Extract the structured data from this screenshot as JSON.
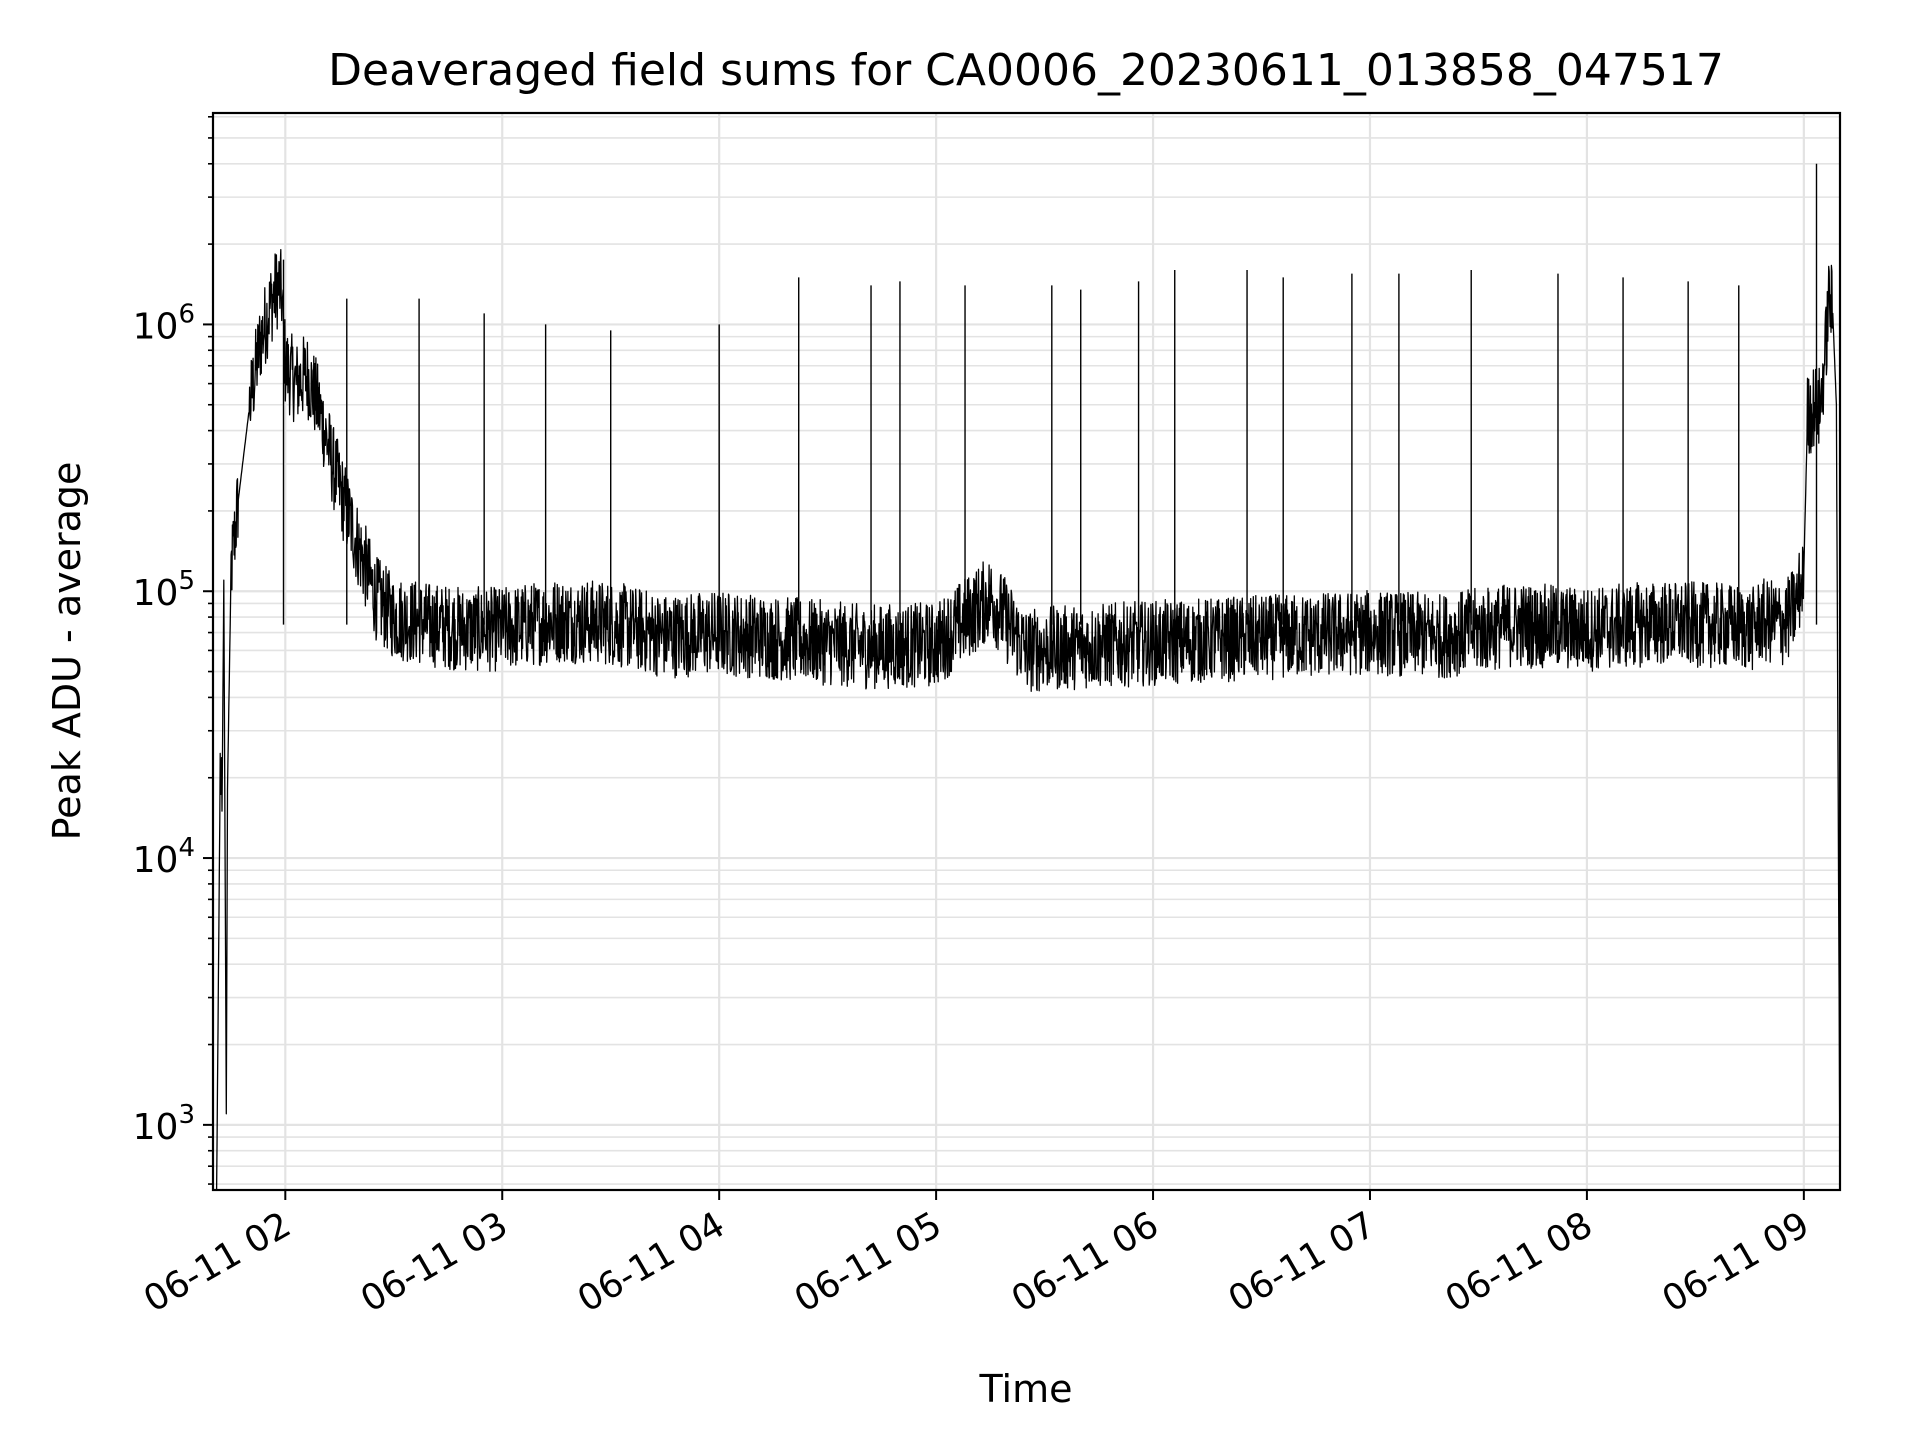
{
  "chart_data": {
    "type": "line",
    "title": "Deaveraged field sums for CA0006_20230611_013858_047517",
    "xlabel": "Time",
    "ylabel": "Peak ADU - average",
    "yscale": "log",
    "grid": true,
    "xlim": [
      "2023-06-11T01:40:00",
      "2023-06-11T09:10:00"
    ],
    "ylim": [
      570,
      6200000
    ],
    "x_ticks": [
      {
        "value": "2023-06-11T02:00:00",
        "label": "06-11 02"
      },
      {
        "value": "2023-06-11T03:00:00",
        "label": "06-11 03"
      },
      {
        "value": "2023-06-11T04:00:00",
        "label": "06-11 04"
      },
      {
        "value": "2023-06-11T05:00:00",
        "label": "06-11 05"
      },
      {
        "value": "2023-06-11T06:00:00",
        "label": "06-11 06"
      },
      {
        "value": "2023-06-11T07:00:00",
        "label": "06-11 07"
      },
      {
        "value": "2023-06-11T08:00:00",
        "label": "06-11 08"
      },
      {
        "value": "2023-06-11T09:00:00",
        "label": "06-11 09"
      }
    ],
    "y_ticks": [
      {
        "value": 1000,
        "base": "10",
        "exp": "3"
      },
      {
        "value": 10000,
        "base": "10",
        "exp": "4"
      },
      {
        "value": 100000,
        "base": "10",
        "exp": "5"
      },
      {
        "value": 1000000,
        "base": "10",
        "exp": "6"
      }
    ],
    "colors": {
      "line": "#000000",
      "grid": "#e3e3e3",
      "axes": "#000000"
    },
    "series": [
      {
        "x": [
          "2023-06-11T01:41:00",
          "2023-06-11T01:42:00",
          "2023-06-11T01:42:30",
          "2023-06-11T01:43:00",
          "2023-06-11T01:43:40",
          "2023-06-11T01:44:00",
          "2023-06-11T01:45:00",
          "2023-06-11T01:47:00",
          "2023-06-11T01:50:00",
          "2023-06-11T01:53:00",
          "2023-06-11T01:56:00",
          "2023-06-11T01:58:00",
          "2023-06-11T01:59:00",
          "2023-06-11T02:00:00",
          "2023-06-11T02:03:00",
          "2023-06-11T02:06:00",
          "2023-06-11T02:08:00",
          "2023-06-11T02:10:00",
          "2023-06-11T02:13:00",
          "2023-06-11T02:16:00",
          "2023-06-11T02:20:00",
          "2023-06-11T02:25:00",
          "2023-06-11T02:30:00",
          "2023-06-11T02:40:00",
          "2023-06-11T02:50:00",
          "2023-06-11T03:00:00",
          "2023-06-11T03:15:00",
          "2023-06-11T03:30:00",
          "2023-06-11T03:45:00",
          "2023-06-11T04:00:00",
          "2023-06-11T04:20:00",
          "2023-06-11T04:40:00",
          "2023-06-11T05:00:00",
          "2023-06-11T05:15:00",
          "2023-06-11T05:25:00",
          "2023-06-11T05:40:00",
          "2023-06-11T06:00:00",
          "2023-06-11T06:20:00",
          "2023-06-11T06:40:00",
          "2023-06-11T07:00:00",
          "2023-06-11T07:20:00",
          "2023-06-11T07:40:00",
          "2023-06-11T08:00:00",
          "2023-06-11T08:20:00",
          "2023-06-11T08:40:00",
          "2023-06-11T08:46:00",
          "2023-06-11T08:48:00",
          "2023-06-11T08:50:00",
          "2023-06-11T08:52:00",
          "2023-06-11T08:54:00",
          "2023-06-11T08:56:00",
          "2023-06-11T08:58:00",
          "2023-06-11T09:00:00",
          "2023-06-11T09:01:00",
          "2023-06-11T09:03:00",
          "2023-06-11T09:04:30",
          "2023-06-11T09:06:00",
          "2023-06-11T09:07:00",
          "2023-06-11T09:08:00",
          "2023-06-11T09:09:00",
          "2023-06-11T09:10:00"
        ],
        "values": [
          570,
          22000,
          15000,
          110000,
          1100,
          18000,
          120000,
          220000,
          480000,
          850000,
          1200000,
          1400000,
          1300000,
          700000,
          600000,
          650000,
          550000,
          450000,
          300000,
          220000,
          150000,
          95000,
          80000,
          75000,
          72000,
          72000,
          78000,
          76000,
          68000,
          70000,
          66000,
          62000,
          63000,
          95000,
          60000,
          62000,
          64000,
          66000,
          68000,
          70000,
          68000,
          75000,
          72000,
          76000,
          74000,
          72000,
          78000,
          76000,
          78000,
          75000,
          80000,
          90000,
          120000,
          450000,
          500000,
          480000,
          800000,
          1300000,
          1100000,
          500000,
          600
        ]
      }
    ],
    "spikes": [
      {
        "x": "2023-06-11T01:59:30",
        "value": 1750000
      },
      {
        "x": "2023-06-11T02:17:00",
        "value": 1250000
      },
      {
        "x": "2023-06-11T02:37:00",
        "value": 1250000
      },
      {
        "x": "2023-06-11T02:55:00",
        "value": 1100000
      },
      {
        "x": "2023-06-11T03:12:00",
        "value": 1000000
      },
      {
        "x": "2023-06-11T03:30:00",
        "value": 950000
      },
      {
        "x": "2023-06-11T04:00:00",
        "value": 1000000
      },
      {
        "x": "2023-06-11T04:22:00",
        "value": 1500000
      },
      {
        "x": "2023-06-11T04:42:00",
        "value": 1400000
      },
      {
        "x": "2023-06-11T04:50:00",
        "value": 1450000
      },
      {
        "x": "2023-06-11T05:08:00",
        "value": 1400000
      },
      {
        "x": "2023-06-11T05:32:00",
        "value": 1400000
      },
      {
        "x": "2023-06-11T05:40:00",
        "value": 1350000
      },
      {
        "x": "2023-06-11T05:56:00",
        "value": 1450000
      },
      {
        "x": "2023-06-11T06:06:00",
        "value": 1600000
      },
      {
        "x": "2023-06-11T06:26:00",
        "value": 1600000
      },
      {
        "x": "2023-06-11T06:36:00",
        "value": 1500000
      },
      {
        "x": "2023-06-11T06:55:00",
        "value": 1550000
      },
      {
        "x": "2023-06-11T07:08:00",
        "value": 1550000
      },
      {
        "x": "2023-06-11T07:28:00",
        "value": 1600000
      },
      {
        "x": "2023-06-11T07:52:00",
        "value": 1550000
      },
      {
        "x": "2023-06-11T08:10:00",
        "value": 1500000
      },
      {
        "x": "2023-06-11T08:28:00",
        "value": 1450000
      },
      {
        "x": "2023-06-11T08:42:00",
        "value": 1400000
      },
      {
        "x": "2023-06-11T09:03:30",
        "value": 4000000
      }
    ]
  }
}
